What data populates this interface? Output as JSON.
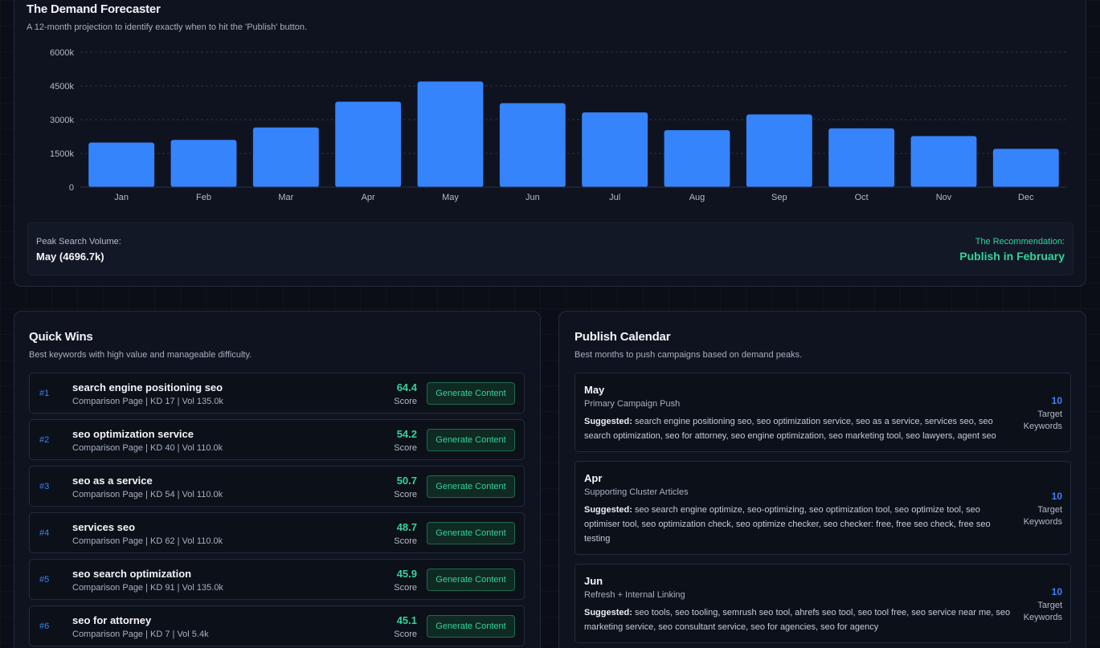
{
  "forecast": {
    "title": "The Demand Forecaster",
    "subtitle": "A 12-month projection to identify exactly when to hit the 'Publish' button.",
    "peak_label": "Peak Search Volume:",
    "peak_value": "May (4696.7k)",
    "recommendation_label": "The Recommendation:",
    "recommendation_value": "Publish in February"
  },
  "chart_data": {
    "type": "bar",
    "categories": [
      "Jan",
      "Feb",
      "Mar",
      "Apr",
      "May",
      "Jun",
      "Jul",
      "Aug",
      "Sep",
      "Oct",
      "Nov",
      "Dec"
    ],
    "values": [
      1980,
      2100,
      2650,
      3800,
      4696.7,
      3730,
      3320,
      2530,
      3230,
      2610,
      2270,
      1700
    ],
    "yticks": [
      0,
      1500,
      3000,
      4500,
      6000
    ],
    "ytick_labels": [
      "0",
      "1500k",
      "3000k",
      "4500k",
      "6000k"
    ],
    "ylim": [
      0,
      6000
    ],
    "grid": true,
    "color": "#3584fc",
    "title": "",
    "xlabel": "",
    "ylabel": ""
  },
  "quick_wins": {
    "title": "Quick Wins",
    "subtitle": "Best keywords with high value and manageable difficulty.",
    "score_label": "Score",
    "button_label": "Generate Content",
    "items": [
      {
        "rank": "#1",
        "keyword": "search engine positioning seo",
        "meta": "Comparison Page | KD 17 | Vol 135.0k",
        "score": "64.4"
      },
      {
        "rank": "#2",
        "keyword": "seo optimization service",
        "meta": "Comparison Page | KD 40 | Vol 110.0k",
        "score": "54.2"
      },
      {
        "rank": "#3",
        "keyword": "seo as a service",
        "meta": "Comparison Page | KD 54 | Vol 110.0k",
        "score": "50.7"
      },
      {
        "rank": "#4",
        "keyword": "services seo",
        "meta": "Comparison Page | KD 62 | Vol 110.0k",
        "score": "48.7"
      },
      {
        "rank": "#5",
        "keyword": "seo search optimization",
        "meta": "Comparison Page | KD 91 | Vol 135.0k",
        "score": "45.9"
      },
      {
        "rank": "#6",
        "keyword": "seo for attorney",
        "meta": "Comparison Page | KD 7 | Vol 5.4k",
        "score": "45.1"
      }
    ]
  },
  "calendar": {
    "title": "Publish Calendar",
    "subtitle": "Best months to push campaigns based on demand peaks.",
    "suggested_label": "Suggested:",
    "target_label": "Target Keywords",
    "items": [
      {
        "month": "May",
        "type": "Primary Campaign Push",
        "suggested": "search engine positioning seo, seo optimization service, seo as a service, services seo, seo search optimization, seo for attorney, seo engine optimization, seo marketing tool, seo lawyers, agent seo",
        "count": "10"
      },
      {
        "month": "Apr",
        "type": "Supporting Cluster Articles",
        "suggested": "seo search engine optimize, seo-optimizing, seo optimization tool, seo optimize tool, seo optimiser tool, seo optimization check, seo optimize checker, seo checker: free, free seo check, free seo testing",
        "count": "10"
      },
      {
        "month": "Jun",
        "type": "Refresh + Internal Linking",
        "suggested": "seo tools, seo tooling, semrush seo tool, ahrefs seo tool, seo tool free, seo service near me, seo marketing service, seo consultant service, seo for agencies, seo for agency",
        "count": "10"
      }
    ]
  }
}
